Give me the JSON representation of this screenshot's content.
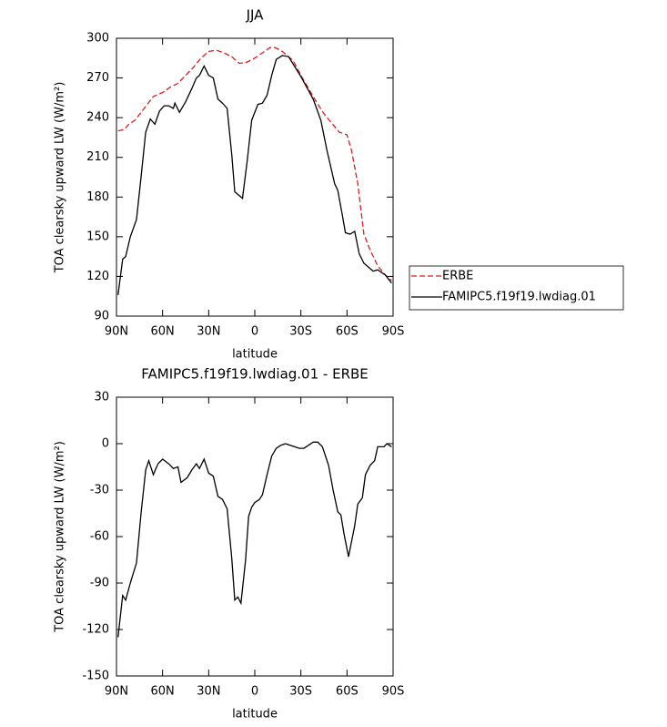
{
  "chart_data": [
    {
      "type": "line",
      "title": "JJA",
      "xlabel": "latitude",
      "ylabel": "TOA clearsky upward LW (W/m²)",
      "xlim": [
        90,
        -90
      ],
      "xticks": [
        {
          "value": 90,
          "label": "90N"
        },
        {
          "value": 60,
          "label": "60N"
        },
        {
          "value": 30,
          "label": "30N"
        },
        0,
        {
          "value": -30,
          "label": "30S"
        },
        {
          "value": -60,
          "label": "60S"
        },
        {
          "value": -90,
          "label": "90S"
        }
      ],
      "ylim": [
        90,
        300
      ],
      "yticks": [
        90,
        120,
        150,
        180,
        210,
        240,
        270,
        300
      ],
      "legend": "right",
      "series": [
        {
          "name": "ERBE",
          "color": "#e31a1c",
          "dash": true,
          "x": [
            89,
            85,
            82,
            78,
            72,
            66,
            60,
            55,
            50,
            45,
            40,
            35,
            30,
            25,
            20,
            15,
            10,
            5,
            0,
            -5,
            -10,
            -13,
            -18,
            -25,
            -30,
            -35,
            -40,
            -45,
            -50,
            -55,
            -60,
            -63,
            -67,
            -71,
            -75,
            -80,
            -85,
            -89
          ],
          "values": [
            230,
            231,
            235,
            238,
            247,
            256,
            259,
            263,
            266,
            272,
            278,
            285,
            290,
            291,
            289,
            286,
            281,
            282,
            285,
            289,
            293,
            293,
            290,
            283,
            272,
            262,
            252,
            243,
            236,
            229,
            227,
            215,
            190,
            152,
            140,
            128,
            121,
            117
          ]
        },
        {
          "name": "FAMIPC5.f19f19.lwdiag.01",
          "color": "#000000",
          "dash": false,
          "x": [
            89,
            86,
            84,
            81,
            77,
            74,
            71,
            68,
            65,
            62,
            59,
            56,
            53,
            52,
            49,
            45,
            41,
            38,
            36,
            33,
            30,
            27,
            24,
            21,
            18,
            15,
            13,
            11,
            8,
            5,
            2,
            -2,
            -5,
            -8,
            -11,
            -14,
            -18,
            -22,
            -30,
            -38,
            -43,
            -47,
            -52,
            -54,
            -57,
            -59,
            -62,
            -65,
            -68,
            -71,
            -74,
            -77,
            -80,
            -85,
            -89
          ],
          "values": [
            106,
            133,
            135,
            150,
            163,
            195,
            229,
            239,
            235,
            245,
            249,
            249,
            247,
            251,
            244,
            252,
            262,
            270,
            272,
            279,
            272,
            270,
            254,
            251,
            247,
            212,
            184,
            182,
            179,
            207,
            238,
            250,
            251,
            257,
            272,
            284,
            287,
            286,
            271,
            254,
            238,
            215,
            190,
            185,
            166,
            153,
            152,
            154,
            137,
            130,
            127,
            124,
            125,
            121,
            115
          ]
        }
      ]
    },
    {
      "type": "line",
      "title": "FAMIPC5.f19f19.lwdiag.01 - ERBE",
      "xlabel": "latitude",
      "ylabel": "TOA clearsky upward LW (W/m²)",
      "xlim": [
        90,
        -90
      ],
      "xticks": [
        {
          "value": 90,
          "label": "90N"
        },
        {
          "value": 60,
          "label": "60N"
        },
        {
          "value": 30,
          "label": "30N"
        },
        0,
        {
          "value": -30,
          "label": "30S"
        },
        {
          "value": -60,
          "label": "60S"
        },
        {
          "value": -90,
          "label": "90S"
        }
      ],
      "ylim": [
        -150,
        30
      ],
      "yticks": [
        -150,
        -120,
        -90,
        -60,
        -30,
        0,
        30
      ],
      "series": [
        {
          "color": "#000000",
          "dash": false,
          "x": [
            89,
            86,
            84,
            81,
            77,
            74,
            71,
            69,
            66,
            63,
            60,
            56,
            53,
            50,
            48,
            44,
            41,
            38,
            36,
            33,
            30,
            27,
            24,
            21,
            18,
            15,
            13,
            11,
            9,
            6,
            4,
            2,
            0,
            -3,
            -5,
            -8,
            -11,
            -14,
            -17,
            -20,
            -23,
            -26,
            -29,
            -32,
            -35,
            -38,
            -41,
            -44,
            -48,
            -51,
            -54,
            -56,
            -58,
            -61,
            -65,
            -67,
            -70,
            -72,
            -75,
            -78,
            -80,
            -84,
            -86,
            -89
          ],
          "values": [
            -125,
            -98,
            -101,
            -90,
            -77,
            -45,
            -17,
            -11,
            -20,
            -13,
            -10,
            -13,
            -16,
            -15,
            -25,
            -22,
            -17,
            -13,
            -16,
            -10,
            -19,
            -21,
            -34,
            -36,
            -42,
            -74,
            -101,
            -99,
            -103,
            -75,
            -47,
            -41,
            -38,
            -36,
            -33,
            -20,
            -8,
            -3,
            -1,
            0,
            -1,
            -2,
            -3,
            -3,
            -1,
            1,
            1,
            -2,
            -14,
            -30,
            -44,
            -46,
            -58,
            -73,
            -53,
            -39,
            -35,
            -20,
            -14,
            -11,
            -2,
            -2,
            0,
            -2
          ]
        }
      ]
    }
  ]
}
